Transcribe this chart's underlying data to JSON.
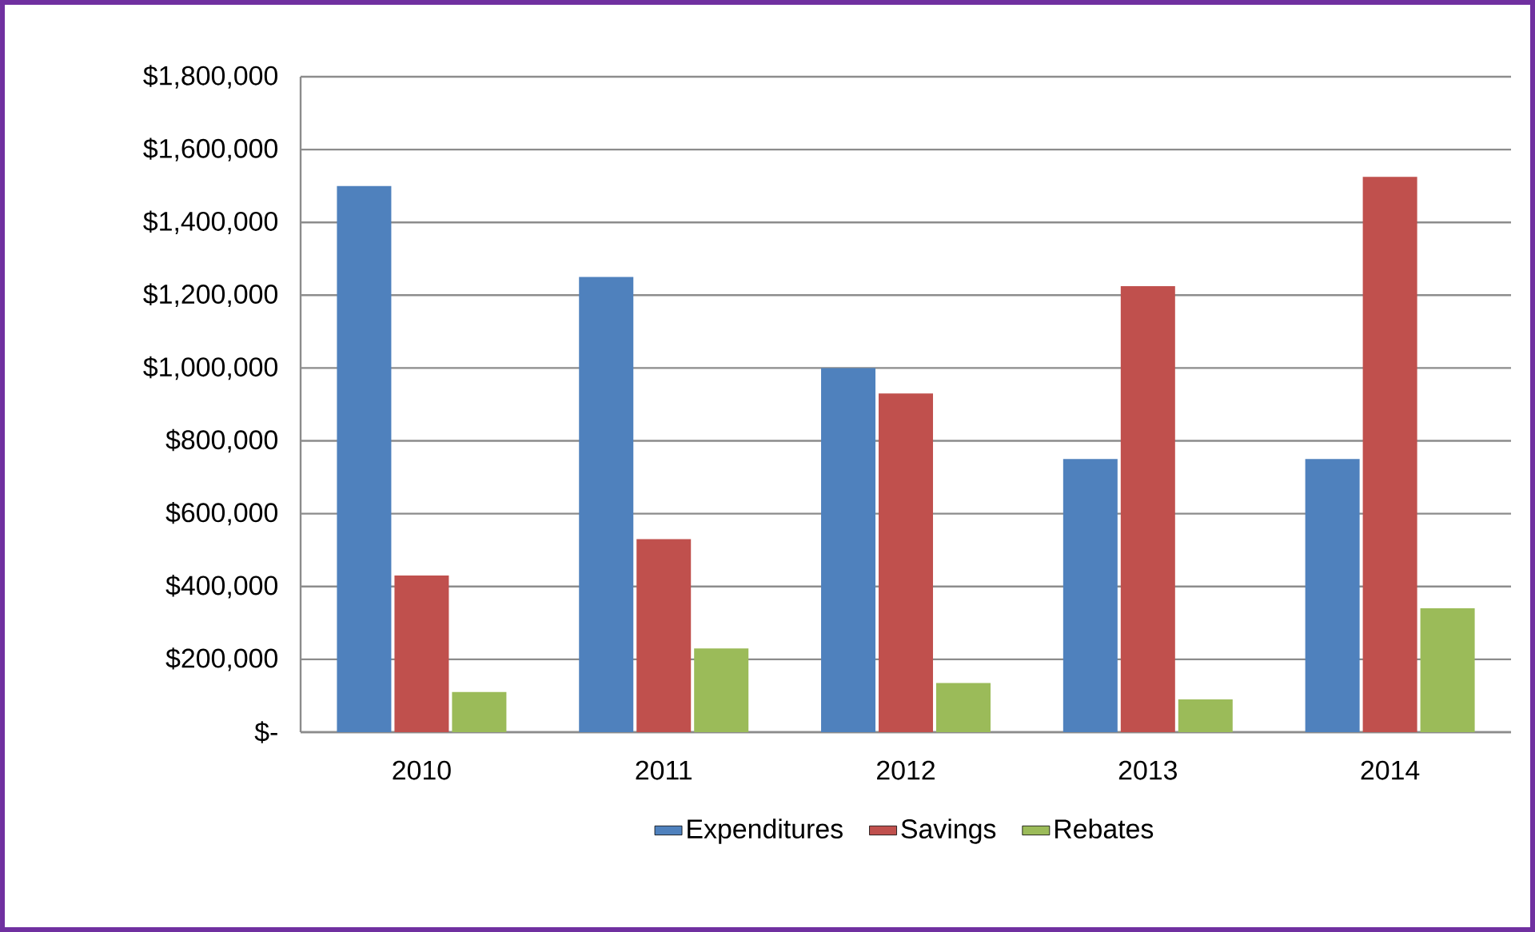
{
  "chart_data": {
    "type": "bar",
    "categories": [
      "2010",
      "2011",
      "2012",
      "2013",
      "2014"
    ],
    "series": [
      {
        "name": "Expenditures",
        "color": "#4f81bd",
        "values": [
          1500000,
          1250000,
          1000000,
          750000,
          750000
        ]
      },
      {
        "name": "Savings",
        "color": "#c0504d",
        "values": [
          430000,
          530000,
          930000,
          1225000,
          1525000
        ]
      },
      {
        "name": "Rebates",
        "color": "#9bbb59",
        "values": [
          110000,
          230000,
          135000,
          90000,
          340000
        ]
      }
    ],
    "ylim": [
      0,
      1800000
    ],
    "yticks": [
      {
        "value": 0,
        "label": "$-"
      },
      {
        "value": 200000,
        "label": "$200,000"
      },
      {
        "value": 400000,
        "label": "$400,000"
      },
      {
        "value": 600000,
        "label": "$600,000"
      },
      {
        "value": 800000,
        "label": "$800,000"
      },
      {
        "value": 1000000,
        "label": "$1,000,000"
      },
      {
        "value": 1200000,
        "label": "$1,200,000"
      },
      {
        "value": 1400000,
        "label": "$1,400,000"
      },
      {
        "value": 1600000,
        "label": "$1,600,000"
      },
      {
        "value": 1800000,
        "label": "$1,800,000"
      }
    ],
    "grid": "y",
    "legend": "bottom"
  }
}
